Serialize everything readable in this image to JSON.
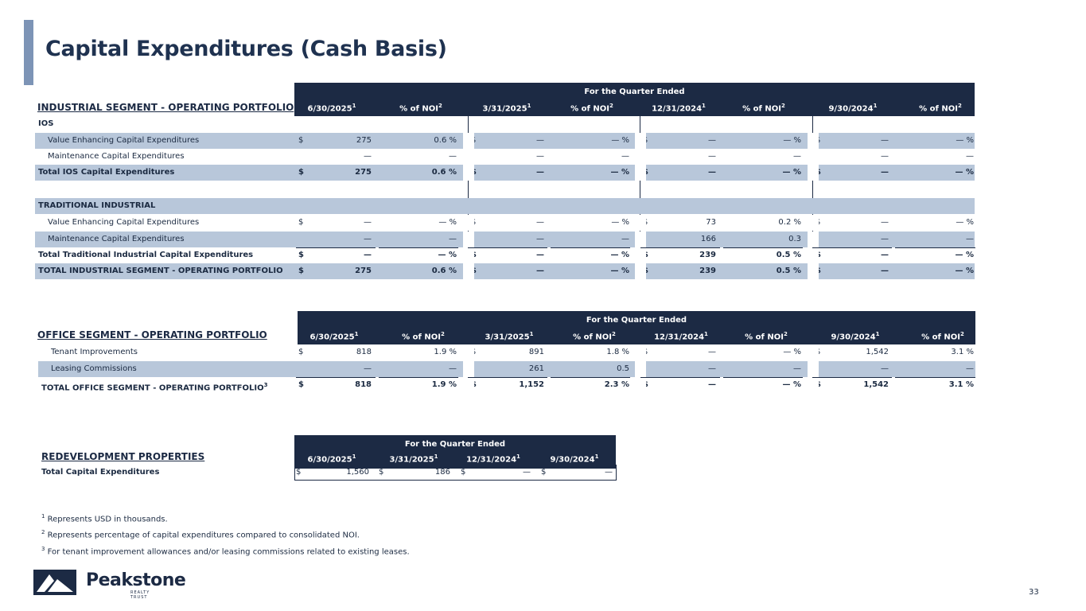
{
  "title": "Capital Expenditures (Cash Basis)",
  "quarter_caption": "For the Quarter Ended",
  "columns": [
    "6/30/2025",
    "% of NOI",
    "3/31/2025",
    "% of NOI",
    "12/31/2024",
    "% of NOI",
    "9/30/2024",
    "% of NOI"
  ],
  "sup1": "1",
  "sup2": "2",
  "sup3": "3",
  "dollar": "$",
  "industrial": {
    "title": "INDUSTRIAL SEGMENT - OPERATING PORTFOLIO",
    "ios_label": "IOS",
    "ios_rows": [
      {
        "label": "Value Enhancing Capital Expenditures",
        "values": [
          "275",
          "0.6 %",
          "—",
          "— %",
          "—",
          "— %",
          "—",
          "— %"
        ]
      },
      {
        "label": "Maintenance Capital Expenditures",
        "values": [
          "—",
          "—",
          "—",
          "—",
          "—",
          "—",
          "—",
          "—"
        ]
      }
    ],
    "ios_total": {
      "label": "Total IOS Capital Expenditures",
      "values": [
        "275",
        "0.6 %",
        "—",
        "— %",
        "—",
        "— %",
        "—",
        "— %"
      ]
    },
    "trad_label": "TRADITIONAL INDUSTRIAL",
    "trad_rows": [
      {
        "label": "Value Enhancing Capital Expenditures",
        "values": [
          "—",
          "— %",
          "—",
          "— %",
          "73",
          "0.2 %",
          "—",
          "— %"
        ]
      },
      {
        "label": "Maintenance Capital Expenditures",
        "values": [
          "—",
          "—",
          "—",
          "—",
          "166",
          "0.3",
          "—",
          "—"
        ]
      }
    ],
    "trad_total": {
      "label": "Total Traditional Industrial Capital Expenditures",
      "values": [
        "—",
        "— %",
        "—",
        "— %",
        "239",
        "0.5 %",
        "—",
        "— %"
      ]
    },
    "grand_total": {
      "label": "TOTAL INDUSTRIAL SEGMENT - OPERATING PORTFOLIO",
      "values": [
        "275",
        "0.6 %",
        "—",
        "— %",
        "239",
        "0.5 %",
        "—",
        "— %"
      ]
    }
  },
  "office": {
    "title": "OFFICE SEGMENT - OPERATING PORTFOLIO",
    "rows": [
      {
        "label": "Tenant Improvements",
        "values": [
          "818",
          "1.9 %",
          "891",
          "1.8 %",
          "—",
          "— %",
          "1,542",
          "3.1 %"
        ]
      },
      {
        "label": "Leasing Commissions",
        "values": [
          "—",
          "—",
          "261",
          "0.5",
          "—",
          "—",
          "—",
          "—"
        ]
      }
    ],
    "total": {
      "label": "TOTAL OFFICE SEGMENT - OPERATING PORTFOLIO",
      "values": [
        "818",
        "1.9 %",
        "1,152",
        "2.3 %",
        "—",
        "— %",
        "1,542",
        "3.1 %"
      ]
    }
  },
  "redevelopment": {
    "title": "REDEVELOPMENT PROPERTIES",
    "columns": [
      "6/30/2025",
      "3/31/2025",
      "12/31/2024",
      "9/30/2024"
    ],
    "total": {
      "label": "Total Capital Expenditures",
      "values": [
        "1,560",
        "186",
        "—",
        "—"
      ]
    }
  },
  "footnotes": [
    {
      "mark": "1",
      "text": "Represents USD in thousands."
    },
    {
      "mark": "2",
      "text": "Represents percentage of capital expenditures compared to consolidated NOI."
    },
    {
      "mark": "3",
      "text": "For tenant improvement allowances and/or leasing commissions related to existing leases."
    }
  ],
  "logo": {
    "name": "Peakstone",
    "tagline": "REALTY TRUST"
  },
  "page_number": "33",
  "colors": {
    "navy": "#1c2a44",
    "shade": "#b8c7da",
    "accent": "#7d94b6"
  }
}
